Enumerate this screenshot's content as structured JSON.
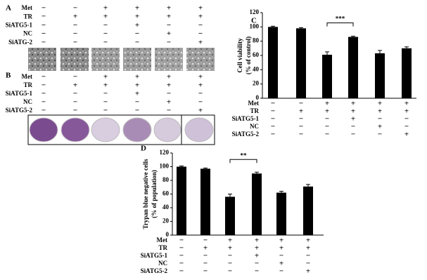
{
  "panel_a": {
    "label": "A",
    "rows": [
      {
        "label": "Met",
        "signs": [
          "−",
          "−",
          "+",
          "+",
          "+",
          "+"
        ]
      },
      {
        "label": "TR",
        "signs": [
          "−",
          "+",
          "+",
          "+",
          "+",
          "+"
        ]
      },
      {
        "label": "SiATG5-1",
        "signs": [
          "−",
          "−",
          "−",
          "+",
          "−",
          "−"
        ]
      },
      {
        "label": "NC",
        "signs": [
          "−",
          "−",
          "−",
          "−",
          "+",
          "−"
        ]
      },
      {
        "label": "SiATG-2",
        "signs": [
          "−",
          "−",
          "−",
          "−",
          "−",
          "+"
        ]
      }
    ]
  },
  "panel_b": {
    "label": "B",
    "rows": [
      {
        "label": "Met",
        "signs": [
          "−",
          "−",
          "+",
          "+",
          "+",
          "+"
        ]
      },
      {
        "label": "TR",
        "signs": [
          "−",
          "+",
          "+",
          "+",
          "+",
          "+"
        ]
      },
      {
        "label": "SiATG5-1",
        "signs": [
          "−",
          "−",
          "−",
          "+",
          "−",
          "−"
        ]
      },
      {
        "label": "NC",
        "signs": [
          "−",
          "−",
          "−",
          "−",
          "+",
          "−"
        ]
      },
      {
        "label": "SiATG5-2",
        "signs": [
          "−",
          "−",
          "−",
          "−",
          "−",
          "+"
        ]
      }
    ]
  },
  "chart_data": [
    {
      "type": "bar",
      "panel_label": "C",
      "y_label": [
        "Cell viability",
        "(% of control)"
      ],
      "categories": [
        null,
        null,
        null,
        null,
        null,
        null
      ],
      "values": [
        100,
        98,
        61,
        86,
        63,
        70
      ],
      "errors": [
        1,
        1,
        4,
        1,
        4,
        2
      ],
      "color": "#000000",
      "ylim": [
        0,
        120
      ],
      "yticks": [
        0,
        20,
        40,
        60,
        80,
        100,
        120
      ],
      "annotation": "***",
      "conditions": [
        {
          "label": "Met",
          "signs": [
            "−",
            "−",
            "+",
            "+",
            "+",
            "+"
          ]
        },
        {
          "label": "TR",
          "signs": [
            "−",
            "+",
            "+",
            "+",
            "+",
            "+"
          ]
        },
        {
          "label": "SiATG5-1",
          "signs": [
            "−",
            "−",
            "−",
            "+",
            "−",
            "−"
          ]
        },
        {
          "label": "NC",
          "signs": [
            "−",
            "−",
            "−",
            "−",
            "+",
            "−"
          ]
        },
        {
          "label": "SiATG5-2",
          "signs": [
            "−",
            "−",
            "−",
            "−",
            "−",
            "+"
          ]
        }
      ]
    },
    {
      "type": "bar",
      "panel_label": "D",
      "y_label": [
        "Trypan blue negative cells",
        "(% of population)"
      ],
      "categories": [
        null,
        null,
        null,
        null,
        null,
        null
      ],
      "values": [
        100,
        97,
        56,
        90,
        62,
        71
      ],
      "errors": [
        1,
        1,
        4,
        2,
        2,
        3
      ],
      "color": "#000000",
      "ylim": [
        0,
        120
      ],
      "yticks": [
        0,
        20,
        40,
        60,
        80,
        100,
        120
      ],
      "annotation": "**",
      "conditions": [
        {
          "label": "Met",
          "signs": [
            "−",
            "−",
            "+",
            "+",
            "+",
            "+"
          ]
        },
        {
          "label": "TR",
          "signs": [
            "−",
            "+",
            "+",
            "+",
            "+",
            "+"
          ]
        },
        {
          "label": "SiATG5-1",
          "signs": [
            "−",
            "−",
            "−",
            "+",
            "−",
            "−"
          ]
        },
        {
          "label": "NC",
          "signs": [
            "−",
            "−",
            "−",
            "−",
            "+",
            "−"
          ]
        },
        {
          "label": "SiATG5-2",
          "signs": [
            "−",
            "−",
            "−",
            "−",
            "−",
            "+"
          ]
        }
      ]
    }
  ]
}
